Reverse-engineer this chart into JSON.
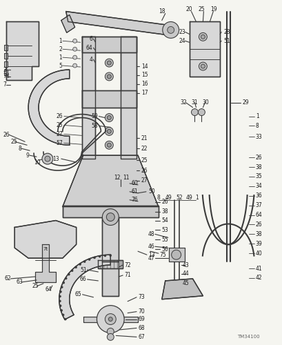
{
  "background_color": "#f5f5f0",
  "line_color": "#3a3a3a",
  "text_color": "#1a1a1a",
  "watermark": "TM34100",
  "fig_width": 4.1,
  "fig_height": 5.0,
  "dpi": 100
}
